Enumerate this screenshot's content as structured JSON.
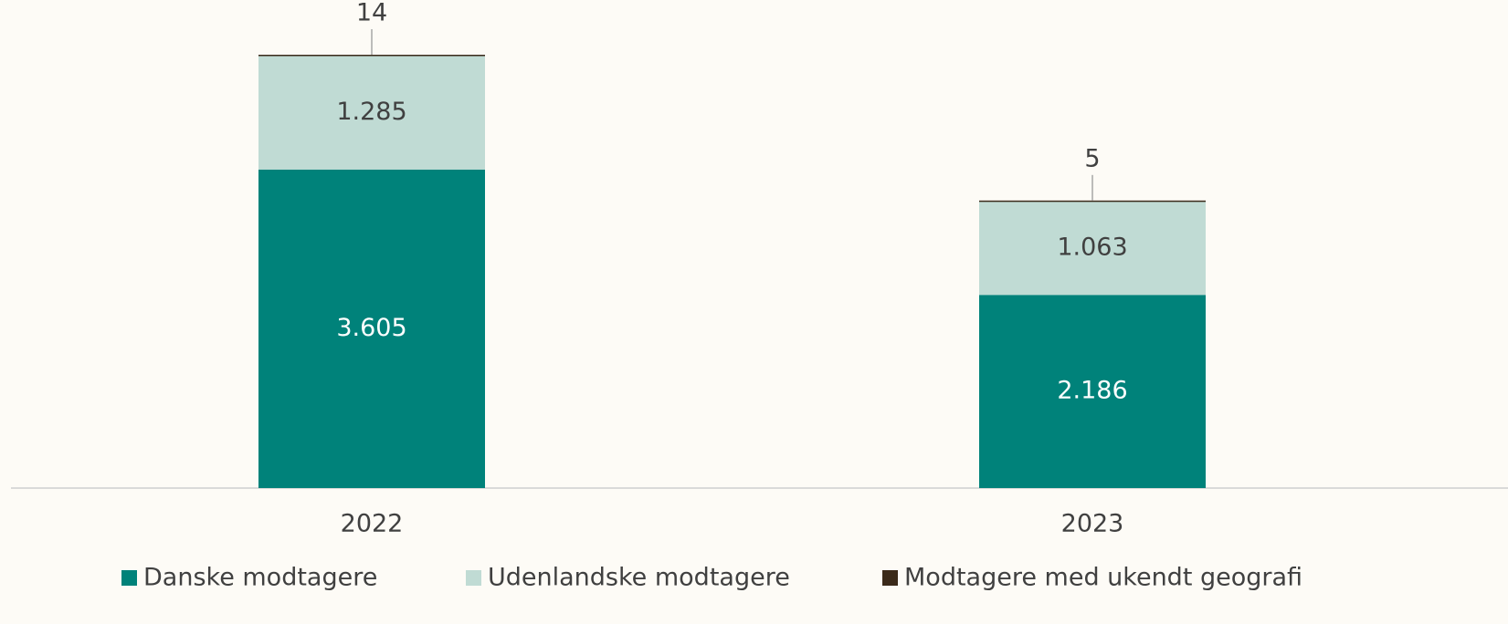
{
  "chart_data": {
    "type": "stacked_bar",
    "categories": [
      "2022",
      "2023"
    ],
    "series": [
      {
        "name": "Danske modtagere",
        "color": "#00827a",
        "values": [
          3605,
          2186
        ],
        "value_labels": [
          "3.605",
          "2.186"
        ]
      },
      {
        "name": "Udenlandske modtagere",
        "color": "#c0dbd4",
        "values": [
          1285,
          1063
        ],
        "value_labels": [
          "1.285",
          "1.063"
        ]
      },
      {
        "name": "Modtagere med ukendt geografi",
        "color": "#3b2a1a",
        "values": [
          14,
          5
        ]
      }
    ],
    "legend": "bottom"
  }
}
